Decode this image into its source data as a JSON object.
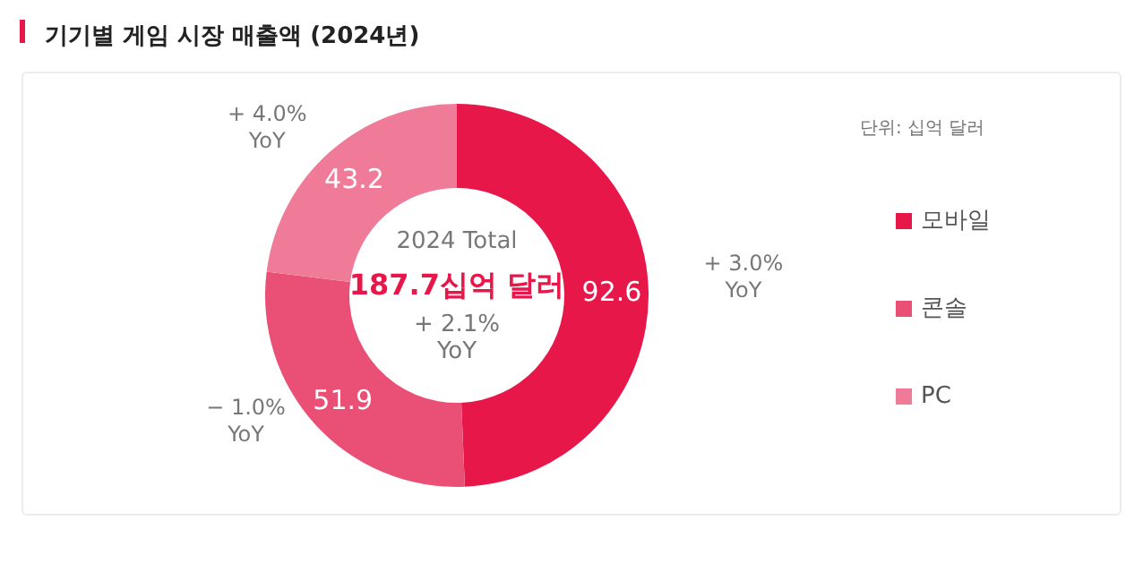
{
  "chart_data": {
    "type": "donut",
    "title": "기기별 게임 시장 매출액 (2024년)",
    "subtitle": "단위: 십억 달러",
    "categories": [
      "모바일",
      "콘솔",
      "PC"
    ],
    "values": [
      92.6,
      51.9,
      43.2
    ],
    "colors": [
      "#e8174a",
      "#ea4f76",
      "#ef7b98"
    ],
    "data_labels": true,
    "legend": "right",
    "annotations": [
      "2024 Total",
      "187.7십억 달러",
      "+ 2.1%\nYoY",
      {
        "text": "+ 3.0%\nYoY",
        "x": "모바일"
      },
      {
        "text": "− 1.0%\nYoY",
        "x": "콘솔"
      },
      {
        "text": "+ 4.0%\nYoY",
        "x": "PC"
      }
    ]
  }
}
